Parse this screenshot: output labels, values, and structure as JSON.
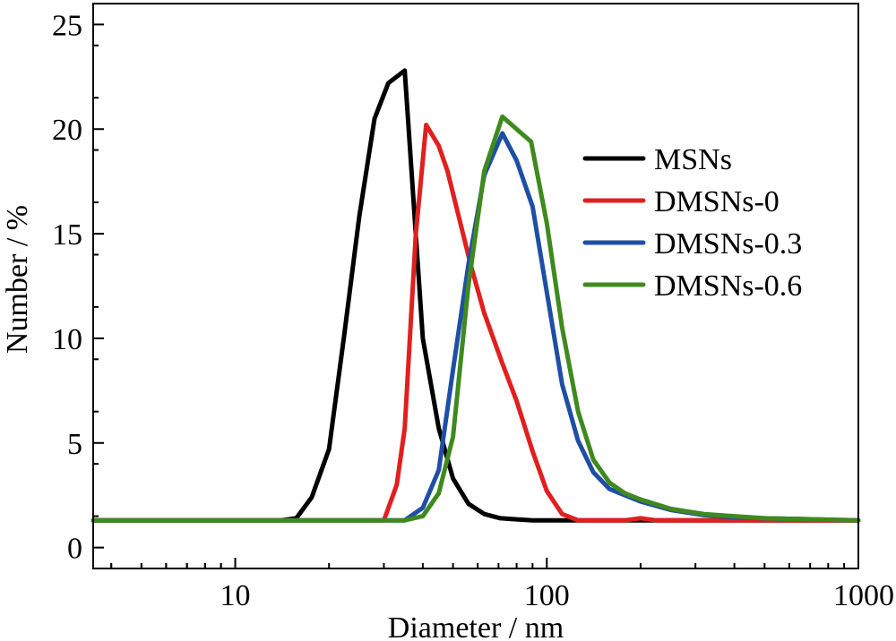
{
  "chart_data": {
    "type": "line",
    "xlabel": "Diameter / nm",
    "ylabel": "Number / %",
    "x_scale": "log",
    "xlim": [
      3.5,
      1000
    ],
    "ylim": [
      -1,
      26
    ],
    "x_ticks": [
      {
        "value": 10,
        "label": "10"
      },
      {
        "value": 100,
        "label": "100"
      },
      {
        "value": 1000,
        "label": "1000"
      }
    ],
    "y_ticks": [
      {
        "value": 0,
        "label": "0"
      },
      {
        "value": 5,
        "label": "5"
      },
      {
        "value": 10,
        "label": "10"
      },
      {
        "value": 15,
        "label": "15"
      },
      {
        "value": 20,
        "label": "20"
      },
      {
        "value": 25,
        "label": "25"
      }
    ],
    "grid": false,
    "legend_position": "top-right",
    "series": [
      {
        "name": "MSNs",
        "color": "#000000",
        "points": [
          [
            3.5,
            1.3
          ],
          [
            14,
            1.3
          ],
          [
            15.7,
            1.4
          ],
          [
            17.6,
            2.4
          ],
          [
            20,
            4.7
          ],
          [
            22.4,
            10.2
          ],
          [
            25,
            15.8
          ],
          [
            28,
            20.5
          ],
          [
            31,
            22.2
          ],
          [
            35,
            22.8
          ],
          [
            40,
            10
          ],
          [
            45,
            5.7
          ],
          [
            50,
            3.3
          ],
          [
            56,
            2.1
          ],
          [
            63,
            1.6
          ],
          [
            71,
            1.4
          ],
          [
            80,
            1.35
          ],
          [
            90,
            1.3
          ],
          [
            100,
            1.3
          ],
          [
            1000,
            1.3
          ]
        ]
      },
      {
        "name": "DMSNs-0",
        "color": "#e0201f",
        "points": [
          [
            3.5,
            1.3
          ],
          [
            30,
            1.3
          ],
          [
            33,
            3
          ],
          [
            35,
            5.7
          ],
          [
            38,
            15
          ],
          [
            41,
            20.2
          ],
          [
            45,
            19.2
          ],
          [
            48,
            18
          ],
          [
            57,
            13.5
          ],
          [
            63,
            11.2
          ],
          [
            72,
            8.8
          ],
          [
            80,
            7
          ],
          [
            90,
            4.6
          ],
          [
            100,
            2.7
          ],
          [
            112,
            1.6
          ],
          [
            126,
            1.3
          ],
          [
            178,
            1.3
          ],
          [
            200,
            1.4
          ],
          [
            224,
            1.3
          ],
          [
            1000,
            1.3
          ]
        ]
      },
      {
        "name": "DMSNs-0.3",
        "color": "#1f4fa5",
        "points": [
          [
            3.5,
            1.3
          ],
          [
            35,
            1.3
          ],
          [
            40,
            1.9
          ],
          [
            45,
            3.7
          ],
          [
            50,
            8.5
          ],
          [
            56,
            13.5
          ],
          [
            63,
            17.8
          ],
          [
            72,
            19.8
          ],
          [
            80,
            18.5
          ],
          [
            90,
            16.3
          ],
          [
            100,
            12.2
          ],
          [
            112,
            7.8
          ],
          [
            126,
            5.1
          ],
          [
            141,
            3.6
          ],
          [
            159,
            2.8
          ],
          [
            178,
            2.5
          ],
          [
            200,
            2.2
          ],
          [
            250,
            1.8
          ],
          [
            320,
            1.55
          ],
          [
            400,
            1.45
          ],
          [
            500,
            1.4
          ],
          [
            1000,
            1.3
          ]
        ]
      },
      {
        "name": "DMSNs-0.6",
        "color": "#3f8a1e",
        "points": [
          [
            3.5,
            1.3
          ],
          [
            35,
            1.3
          ],
          [
            40,
            1.5
          ],
          [
            45,
            2.6
          ],
          [
            50,
            5.3
          ],
          [
            56,
            12.5
          ],
          [
            63,
            18
          ],
          [
            72,
            20.6
          ],
          [
            80,
            20
          ],
          [
            89,
            19.4
          ],
          [
            100,
            15.5
          ],
          [
            112,
            10.5
          ],
          [
            126,
            6.5
          ],
          [
            141,
            4.2
          ],
          [
            159,
            3.1
          ],
          [
            178,
            2.6
          ],
          [
            200,
            2.3
          ],
          [
            250,
            1.85
          ],
          [
            320,
            1.6
          ],
          [
            400,
            1.5
          ],
          [
            500,
            1.4
          ],
          [
            1000,
            1.3
          ]
        ]
      }
    ]
  }
}
